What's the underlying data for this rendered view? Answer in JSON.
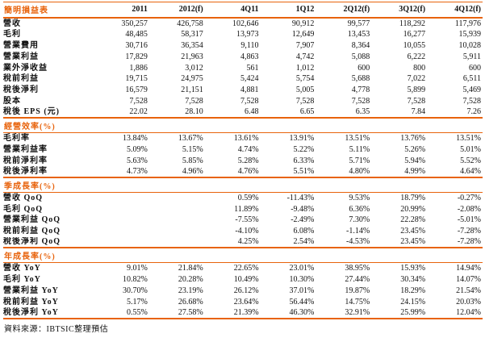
{
  "accent_color": "#E8630C",
  "table": {
    "title": "簡明損益表",
    "columns": [
      "2011",
      "2012(f)",
      "4Q11",
      "1Q12",
      "2Q12(f)",
      "3Q12(f)",
      "4Q12(f)"
    ],
    "sections": [
      {
        "header": "",
        "rows": [
          {
            "label": "營收",
            "values": [
              "350,257",
              "426,758",
              "102,646",
              "90,912",
              "99,577",
              "118,292",
              "117,976"
            ]
          },
          {
            "label": "毛利",
            "values": [
              "48,485",
              "58,317",
              "13,973",
              "12,649",
              "13,453",
              "16,277",
              "15,939"
            ]
          },
          {
            "label": "營業費用",
            "values": [
              "30,716",
              "36,354",
              "9,110",
              "7,907",
              "8,364",
              "10,055",
              "10,028"
            ]
          },
          {
            "label": "營業利益",
            "values": [
              "17,829",
              "21,963",
              "4,863",
              "4,742",
              "5,088",
              "6,222",
              "5,911"
            ]
          },
          {
            "label": "業外淨收益",
            "values": [
              "1,886",
              "3,012",
              "561",
              "1,012",
              "600",
              "800",
              "600"
            ]
          },
          {
            "label": "稅前利益",
            "values": [
              "19,715",
              "24,975",
              "5,424",
              "5,754",
              "5,688",
              "7,022",
              "6,511"
            ]
          },
          {
            "label": "稅後淨利",
            "values": [
              "16,579",
              "21,151",
              "4,881",
              "5,005",
              "4,778",
              "5,899",
              "5,469"
            ]
          },
          {
            "label": "股本",
            "values": [
              "7,528",
              "7,528",
              "7,528",
              "7,528",
              "7,528",
              "7,528",
              "7,528"
            ]
          },
          {
            "label": "稅後 EPS (元)",
            "values": [
              "22.02",
              "28.10",
              "6.48",
              "6.65",
              "6.35",
              "7.84",
              "7.26"
            ]
          }
        ]
      },
      {
        "header": "經營效率(%)",
        "rows": [
          {
            "label": "毛利率",
            "values": [
              "13.84%",
              "13.67%",
              "13.61%",
              "13.91%",
              "13.51%",
              "13.76%",
              "13.51%"
            ]
          },
          {
            "label": "營業利益率",
            "values": [
              "5.09%",
              "5.15%",
              "4.74%",
              "5.22%",
              "5.11%",
              "5.26%",
              "5.01%"
            ]
          },
          {
            "label": "稅前淨利率",
            "values": [
              "5.63%",
              "5.85%",
              "5.28%",
              "6.33%",
              "5.71%",
              "5.94%",
              "5.52%"
            ]
          },
          {
            "label": "稅後淨利率",
            "values": [
              "4.73%",
              "4.96%",
              "4.76%",
              "5.51%",
              "4.80%",
              "4.99%",
              "4.64%"
            ]
          }
        ]
      },
      {
        "header": "季成長率(%)",
        "rows": [
          {
            "label": "營收 QoQ",
            "values": [
              "",
              "",
              "0.59%",
              "-11.43%",
              "9.53%",
              "18.79%",
              "-0.27%"
            ]
          },
          {
            "label": "毛利 QoQ",
            "values": [
              "",
              "",
              "11.89%",
              "-9.48%",
              "6.36%",
              "20.99%",
              "-2.08%"
            ]
          },
          {
            "label": "營業利益 QoQ",
            "values": [
              "",
              "",
              "-7.55%",
              "-2.49%",
              "7.30%",
              "22.28%",
              "-5.01%"
            ]
          },
          {
            "label": "稅前利益 QoQ",
            "values": [
              "",
              "",
              "-4.10%",
              "6.08%",
              "-1.14%",
              "23.45%",
              "-7.28%"
            ]
          },
          {
            "label": "稅後淨利 QoQ",
            "values": [
              "",
              "",
              "4.25%",
              "2.54%",
              "-4.53%",
              "23.45%",
              "-7.28%"
            ]
          }
        ]
      },
      {
        "header": "年成長率(%)",
        "rows": [
          {
            "label": "營收 YoY",
            "values": [
              "9.01%",
              "21.84%",
              "22.65%",
              "23.01%",
              "38.95%",
              "15.93%",
              "14.94%"
            ]
          },
          {
            "label": "毛利 YoY",
            "values": [
              "10.82%",
              "20.28%",
              "10.49%",
              "10.30%",
              "27.44%",
              "30.34%",
              "14.07%"
            ]
          },
          {
            "label": "營業利益 YoY",
            "values": [
              "30.70%",
              "23.19%",
              "26.12%",
              "37.01%",
              "19.87%",
              "18.29%",
              "21.54%"
            ]
          },
          {
            "label": "稅前利益 YoY",
            "values": [
              "5.17%",
              "26.68%",
              "23.64%",
              "56.44%",
              "14.75%",
              "24.15%",
              "20.03%"
            ]
          },
          {
            "label": "稅後淨利 YoY",
            "values": [
              "0.55%",
              "27.58%",
              "21.39%",
              "46.30%",
              "32.91%",
              "25.99%",
              "12.04%"
            ]
          }
        ]
      }
    ],
    "footer": "資料來源：IBTSIC整理預估"
  }
}
